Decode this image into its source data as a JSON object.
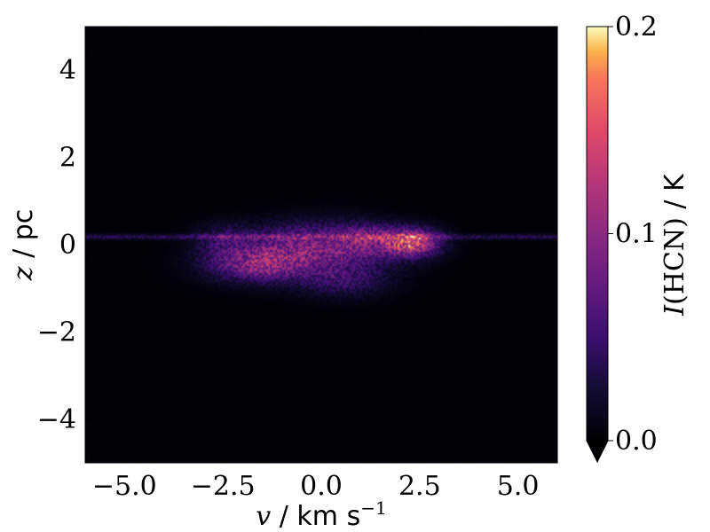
{
  "chart_data": {
    "type": "heatmap",
    "colormap": "inferno",
    "xlim": [
      -6,
      6
    ],
    "ylim": [
      -5,
      5
    ],
    "xticks": [
      -5.0,
      -2.5,
      0.0,
      2.5,
      5.0
    ],
    "xtick_labels": [
      "−5.0",
      "−2.5",
      "0.0",
      "2.5",
      "5.0"
    ],
    "yticks": [
      -4,
      -2,
      0,
      2,
      4
    ],
    "ytick_labels": [
      "−4",
      "−2",
      "0",
      "2",
      "4"
    ],
    "xlabel": {
      "sym": "v",
      "units": " / km s",
      "sup": "−1"
    },
    "ylabel": {
      "sym": "z",
      "units": " / pc"
    },
    "colorbar": {
      "label": {
        "sym": "I",
        "roman": "(HCN)",
        "units": " / K"
      },
      "vmin": 0.0,
      "vmax": 0.2,
      "ticks": [
        0.0,
        0.1,
        0.2
      ],
      "tick_labels": [
        "0.0",
        "0.1",
        "0.2"
      ],
      "extend": "min"
    },
    "features": [
      {
        "kind": "blob",
        "vx": -1.6,
        "z": -0.45,
        "sx": 0.9,
        "sz": 0.28,
        "amp": 0.085
      },
      {
        "kind": "blob",
        "vx": -0.6,
        "z": 0.0,
        "sx": 1.0,
        "sz": 0.35,
        "amp": 0.06
      },
      {
        "kind": "blob",
        "vx": 0.7,
        "z": -0.2,
        "sx": 0.9,
        "sz": 0.45,
        "amp": 0.045
      },
      {
        "kind": "blob",
        "vx": 2.3,
        "z": 0.05,
        "sx": 0.5,
        "sz": 0.22,
        "amp": 0.13
      },
      {
        "kind": "blob",
        "vx": 1.2,
        "z": 0.15,
        "sx": 0.5,
        "sz": 0.22,
        "amp": 0.05
      },
      {
        "kind": "blob",
        "vx": 0.5,
        "z": -0.85,
        "sx": 0.8,
        "sz": 0.25,
        "amp": 0.03
      },
      {
        "kind": "blob",
        "vx": -2.5,
        "z": 0.1,
        "sx": 0.5,
        "sz": 0.25,
        "amp": 0.035
      },
      {
        "kind": "stripe",
        "z": 0.18,
        "amp": 0.035
      }
    ]
  }
}
